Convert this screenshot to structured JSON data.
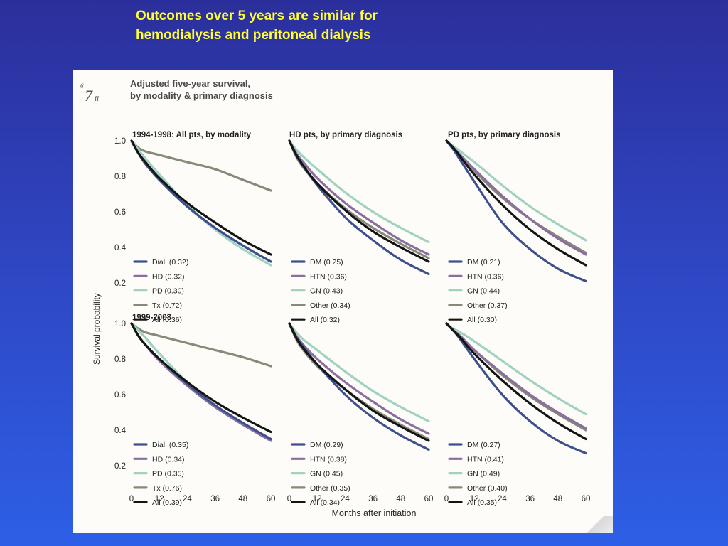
{
  "slide": {
    "title_line1": "Outcomes over 5 years are similar for",
    "title_line2": "hemodialysis and peritoneal dialysis"
  },
  "figure": {
    "number": "7",
    "number_sup": "6",
    "number_sub": "ii",
    "title_line1": "Adjusted five-year survival,",
    "title_line2": "by modality & primary diagnosis",
    "ylabel": "Survival probability",
    "xlabel": "Months after initiation",
    "row_labels": [
      "1994-1998: All pts, by modality",
      "1999-2003"
    ],
    "col_titles": [
      "",
      "HD pts, by primary diagnosis",
      "PD pts, by primary diagnosis"
    ],
    "colors": {
      "navy": "#3d4f8c",
      "purple": "#8a6f9e",
      "teal": "#9fd2bf",
      "gray": "#868a78",
      "black": "#141414"
    }
  },
  "chart_data": [
    {
      "type": "line",
      "panel": "1994-1998: All pts, by modality",
      "xlim": [
        0,
        60
      ],
      "ylim": [
        0.1,
        1.0
      ],
      "xticks": [
        0,
        12,
        24,
        36,
        48,
        60
      ],
      "yticks": [
        1.0,
        0.8,
        0.6,
        0.4,
        0.2
      ],
      "x": [
        0,
        3,
        6,
        12,
        24,
        36,
        48,
        60
      ],
      "series": [
        {
          "name": "Dial. (0.32)",
          "color": "#3d4f8c",
          "values": [
            1.0,
            0.93,
            0.87,
            0.78,
            0.63,
            0.51,
            0.41,
            0.32
          ]
        },
        {
          "name": "HD (0.32)",
          "color": "#8a6f9e",
          "values": [
            1.0,
            0.93,
            0.87,
            0.78,
            0.63,
            0.51,
            0.41,
            0.32
          ]
        },
        {
          "name": "PD (0.30)",
          "color": "#9fd2bf",
          "values": [
            1.0,
            0.95,
            0.9,
            0.81,
            0.64,
            0.5,
            0.39,
            0.3
          ]
        },
        {
          "name": "Tx (0.72)",
          "color": "#868a78",
          "values": [
            1.0,
            0.96,
            0.94,
            0.92,
            0.88,
            0.84,
            0.78,
            0.72
          ]
        },
        {
          "name": "All (0.36)",
          "color": "#141414",
          "values": [
            1.0,
            0.93,
            0.88,
            0.79,
            0.65,
            0.54,
            0.44,
            0.36
          ]
        }
      ]
    },
    {
      "type": "line",
      "panel": "HD pts, by primary diagnosis (1994-1998)",
      "xlim": [
        0,
        60
      ],
      "ylim": [
        0.1,
        1.0
      ],
      "xticks": [
        0,
        12,
        24,
        36,
        48,
        60
      ],
      "yticks": [
        1.0,
        0.8,
        0.6,
        0.4,
        0.2
      ],
      "x": [
        0,
        3,
        6,
        12,
        24,
        36,
        48,
        60
      ],
      "series": [
        {
          "name": "DM (0.25)",
          "color": "#3d4f8c",
          "values": [
            1.0,
            0.92,
            0.86,
            0.75,
            0.57,
            0.44,
            0.33,
            0.25
          ]
        },
        {
          "name": "HTN (0.36)",
          "color": "#8a6f9e",
          "values": [
            1.0,
            0.93,
            0.88,
            0.79,
            0.65,
            0.54,
            0.44,
            0.36
          ]
        },
        {
          "name": "GN (0.43)",
          "color": "#9fd2bf",
          "values": [
            1.0,
            0.95,
            0.91,
            0.84,
            0.71,
            0.6,
            0.51,
            0.43
          ]
        },
        {
          "name": "Other (0.34)",
          "color": "#868a78",
          "values": [
            1.0,
            0.91,
            0.85,
            0.76,
            0.62,
            0.51,
            0.42,
            0.34
          ]
        },
        {
          "name": "All (0.32)",
          "color": "#141414",
          "values": [
            1.0,
            0.92,
            0.86,
            0.76,
            0.61,
            0.49,
            0.4,
            0.32
          ]
        }
      ]
    },
    {
      "type": "line",
      "panel": "PD pts, by primary diagnosis (1994-1998)",
      "xlim": [
        0,
        60
      ],
      "ylim": [
        0.1,
        1.0
      ],
      "xticks": [
        0,
        12,
        24,
        36,
        48,
        60
      ],
      "yticks": [
        1.0,
        0.8,
        0.6,
        0.4,
        0.2
      ],
      "x": [
        0,
        3,
        6,
        12,
        24,
        36,
        48,
        60
      ],
      "series": [
        {
          "name": "DM (0.21)",
          "color": "#3d4f8c",
          "values": [
            1.0,
            0.95,
            0.89,
            0.77,
            0.54,
            0.39,
            0.28,
            0.21
          ]
        },
        {
          "name": "HTN (0.36)",
          "color": "#8a6f9e",
          "values": [
            1.0,
            0.96,
            0.92,
            0.84,
            0.69,
            0.56,
            0.45,
            0.36
          ]
        },
        {
          "name": "GN (0.44)",
          "color": "#9fd2bf",
          "values": [
            1.0,
            0.97,
            0.94,
            0.88,
            0.75,
            0.63,
            0.53,
            0.44
          ]
        },
        {
          "name": "Other (0.37)",
          "color": "#868a78",
          "values": [
            1.0,
            0.96,
            0.92,
            0.83,
            0.68,
            0.56,
            0.46,
            0.37
          ]
        },
        {
          "name": "All (0.30)",
          "color": "#141414",
          "values": [
            1.0,
            0.96,
            0.91,
            0.81,
            0.64,
            0.5,
            0.39,
            0.3
          ]
        }
      ]
    },
    {
      "type": "line",
      "panel": "1999-2003: All pts, by modality",
      "xlim": [
        0,
        60
      ],
      "ylim": [
        0.1,
        1.0
      ],
      "xticks": [
        0,
        12,
        24,
        36,
        48,
        60
      ],
      "yticks": [
        1.0,
        0.8,
        0.6,
        0.4,
        0.2
      ],
      "x": [
        0,
        3,
        6,
        12,
        24,
        36,
        48,
        60
      ],
      "series": [
        {
          "name": "Dial. (0.35)",
          "color": "#3d4f8c",
          "values": [
            1.0,
            0.93,
            0.88,
            0.8,
            0.66,
            0.54,
            0.44,
            0.35
          ]
        },
        {
          "name": "HD (0.34)",
          "color": "#8a6f9e",
          "values": [
            1.0,
            0.93,
            0.88,
            0.79,
            0.65,
            0.53,
            0.43,
            0.34
          ]
        },
        {
          "name": "PD (0.35)",
          "color": "#9fd2bf",
          "values": [
            1.0,
            0.96,
            0.92,
            0.83,
            0.67,
            0.54,
            0.44,
            0.35
          ]
        },
        {
          "name": "Tx (0.76)",
          "color": "#868a78",
          "values": [
            1.0,
            0.97,
            0.95,
            0.93,
            0.89,
            0.85,
            0.81,
            0.76
          ]
        },
        {
          "name": "All (0.39)",
          "color": "#141414",
          "values": [
            1.0,
            0.93,
            0.88,
            0.8,
            0.67,
            0.56,
            0.47,
            0.39
          ]
        }
      ]
    },
    {
      "type": "line",
      "panel": "HD pts, by primary diagnosis (1999-2003)",
      "xlim": [
        0,
        60
      ],
      "ylim": [
        0.1,
        1.0
      ],
      "xticks": [
        0,
        12,
        24,
        36,
        48,
        60
      ],
      "yticks": [
        1.0,
        0.8,
        0.6,
        0.4,
        0.2
      ],
      "x": [
        0,
        3,
        6,
        12,
        24,
        36,
        48,
        60
      ],
      "series": [
        {
          "name": "DM (0.29)",
          "color": "#3d4f8c",
          "values": [
            1.0,
            0.92,
            0.87,
            0.77,
            0.6,
            0.47,
            0.37,
            0.29
          ]
        },
        {
          "name": "HTN (0.38)",
          "color": "#8a6f9e",
          "values": [
            1.0,
            0.93,
            0.88,
            0.8,
            0.67,
            0.56,
            0.46,
            0.38
          ]
        },
        {
          "name": "GN (0.45)",
          "color": "#9fd2bf",
          "values": [
            1.0,
            0.95,
            0.91,
            0.85,
            0.73,
            0.62,
            0.53,
            0.45
          ]
        },
        {
          "name": "Other (0.35)",
          "color": "#868a78",
          "values": [
            1.0,
            0.91,
            0.85,
            0.76,
            0.63,
            0.52,
            0.43,
            0.35
          ]
        },
        {
          "name": "All (0.34)",
          "color": "#141414",
          "values": [
            1.0,
            0.92,
            0.86,
            0.77,
            0.63,
            0.51,
            0.42,
            0.34
          ]
        }
      ]
    },
    {
      "type": "line",
      "panel": "PD pts, by primary diagnosis (1999-2003)",
      "xlim": [
        0,
        60
      ],
      "ylim": [
        0.1,
        1.0
      ],
      "xticks": [
        0,
        12,
        24,
        36,
        48,
        60
      ],
      "yticks": [
        1.0,
        0.8,
        0.6,
        0.4,
        0.2
      ],
      "x": [
        0,
        3,
        6,
        12,
        24,
        36,
        48,
        60
      ],
      "series": [
        {
          "name": "DM (0.27)",
          "color": "#3d4f8c",
          "values": [
            1.0,
            0.96,
            0.91,
            0.8,
            0.6,
            0.45,
            0.34,
            0.27
          ]
        },
        {
          "name": "HTN (0.41)",
          "color": "#8a6f9e",
          "values": [
            1.0,
            0.96,
            0.93,
            0.85,
            0.72,
            0.6,
            0.5,
            0.41
          ]
        },
        {
          "name": "GN (0.49)",
          "color": "#9fd2bf",
          "values": [
            1.0,
            0.97,
            0.95,
            0.9,
            0.79,
            0.68,
            0.58,
            0.49
          ]
        },
        {
          "name": "Other (0.40)",
          "color": "#868a78",
          "values": [
            1.0,
            0.96,
            0.93,
            0.85,
            0.71,
            0.59,
            0.49,
            0.4
          ]
        },
        {
          "name": "All (0.35)",
          "color": "#141414",
          "values": [
            1.0,
            0.96,
            0.92,
            0.83,
            0.68,
            0.55,
            0.44,
            0.35
          ]
        }
      ]
    }
  ]
}
